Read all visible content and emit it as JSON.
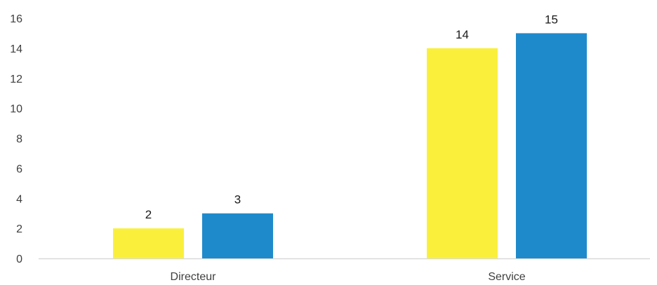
{
  "chart_data": {
    "type": "bar",
    "categories": [
      "Directeur",
      "Service"
    ],
    "series": [
      {
        "values": [
          2,
          14
        ],
        "color": "#FAF03C"
      },
      {
        "values": [
          3,
          15
        ],
        "color": "#1E8ACC"
      }
    ],
    "y_ticks": [
      "0",
      "2",
      "4",
      "6",
      "8",
      "10",
      "12",
      "14",
      "16"
    ],
    "ylim": [
      0,
      16
    ],
    "data_labels": true,
    "grid": false,
    "legend": "none",
    "axis_color": "#d9d9d9",
    "label_color": "#404040"
  }
}
